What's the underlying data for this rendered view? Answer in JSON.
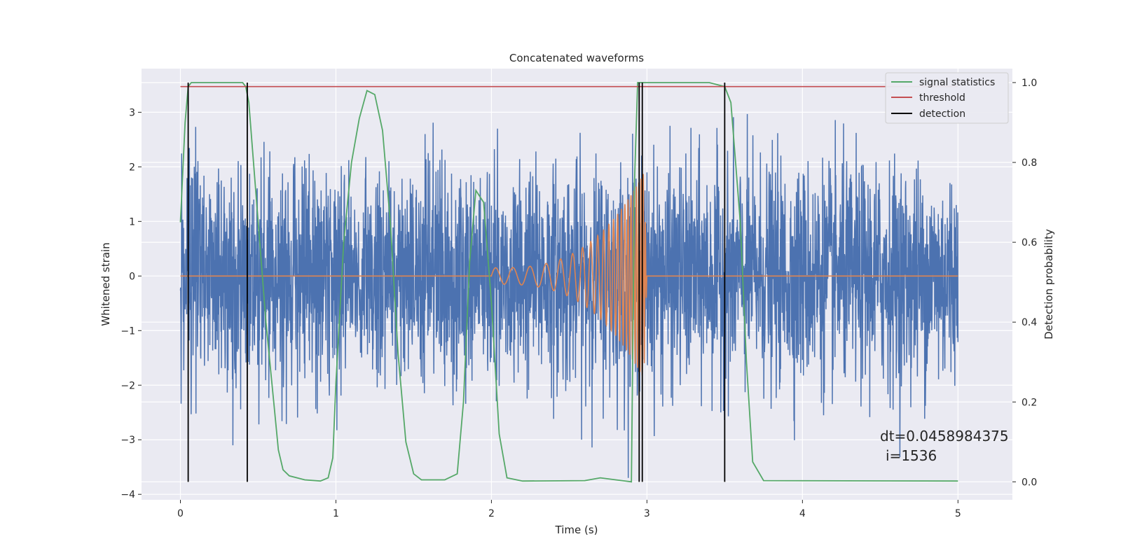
{
  "chart_data": {
    "type": "line",
    "title": "Concatenated waveforms",
    "xlabel": "Time (s)",
    "ylabel": "Whitened strain",
    "y2label": "Detection probability",
    "xlim": [
      -0.25,
      5.35
    ],
    "ylim": [
      -4.1,
      3.8
    ],
    "y2lim": [
      -0.045,
      1.035
    ],
    "xticks": [
      0,
      1,
      2,
      3,
      4,
      5
    ],
    "yticks": [
      -4,
      -3,
      -2,
      -1,
      0,
      1,
      2,
      3
    ],
    "y2ticks": [
      0.0,
      0.2,
      0.4,
      0.6,
      0.8,
      1.0
    ],
    "ytick_labels": [
      "−4",
      "−3",
      "−2",
      "−1",
      "0",
      "1",
      "2",
      "3"
    ],
    "y2tick_labels": [
      "0.0",
      "0.2",
      "0.4",
      "0.6",
      "0.8",
      "1.0"
    ],
    "grid": true,
    "legend_position": "top-right",
    "series": [
      {
        "name": "",
        "color": "#4c72b0",
        "axis": "left",
        "kind": "whitened-strain-noise",
        "x_range": [
          0,
          5
        ],
        "typical_amplitude": 1.0,
        "peak_amplitude": 3.4
      },
      {
        "name": "",
        "color": "#dd8452",
        "axis": "left",
        "kind": "chirp-injection",
        "x_range": [
          2,
          3
        ],
        "start_amplitude": 0.15,
        "end_amplitude": 2.0
      },
      {
        "name": "signal statistics",
        "color": "#55a868",
        "axis": "right",
        "x": [
          0,
          0.03,
          0.05,
          0.07,
          0.1,
          0.2,
          0.4,
          0.42,
          0.44,
          0.46,
          0.5,
          0.55,
          0.6,
          0.63,
          0.66,
          0.7,
          0.8,
          0.9,
          0.95,
          0.98,
          1.0,
          1.05,
          1.1,
          1.15,
          1.2,
          1.25,
          1.3,
          1.35,
          1.4,
          1.45,
          1.5,
          1.55,
          1.7,
          1.78,
          1.82,
          1.86,
          1.9,
          1.95,
          2.0,
          2.05,
          2.1,
          2.2,
          2.6,
          2.7,
          2.8,
          2.9,
          2.92,
          2.94,
          2.96,
          3.0,
          3.4,
          3.5,
          3.54,
          3.6,
          3.64,
          3.68,
          3.75,
          5.0
        ],
        "y": [
          0.65,
          0.9,
          0.99,
          1.0,
          1.0,
          1.0,
          1.0,
          0.99,
          0.95,
          0.85,
          0.65,
          0.4,
          0.2,
          0.08,
          0.03,
          0.015,
          0.005,
          0.002,
          0.01,
          0.06,
          0.25,
          0.6,
          0.8,
          0.91,
          0.98,
          0.97,
          0.88,
          0.65,
          0.32,
          0.1,
          0.02,
          0.005,
          0.005,
          0.02,
          0.2,
          0.55,
          0.73,
          0.7,
          0.45,
          0.12,
          0.01,
          0.002,
          0.003,
          0.01,
          0.005,
          0.0,
          0.75,
          1.0,
          1.0,
          1.0,
          1.0,
          0.99,
          0.95,
          0.65,
          0.3,
          0.05,
          0.003,
          0.002
        ]
      },
      {
        "name": "threshold",
        "color": "#c44e52",
        "axis": "right",
        "x": [
          0,
          5
        ],
        "y": [
          0.99,
          0.99
        ]
      },
      {
        "name": "detection",
        "color": "#000000",
        "axis": "right",
        "kind": "vertical-lines",
        "x": [
          0.05,
          0.43,
          2.95,
          2.97,
          3.5
        ],
        "y_range": [
          0,
          1.0
        ]
      }
    ],
    "annotations": [
      "dt=0.0458984375",
      "i=1536"
    ]
  }
}
